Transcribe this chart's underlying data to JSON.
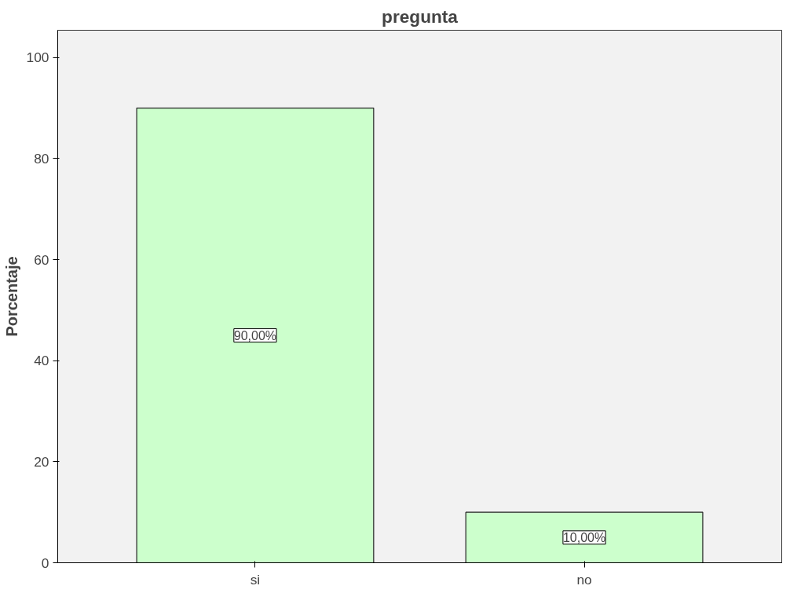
{
  "chart_data": {
    "type": "bar",
    "title": "pregunta",
    "ylabel": "Porcentaje",
    "categories": [
      "si",
      "no"
    ],
    "values": [
      90,
      10
    ],
    "value_labels": [
      "90,00%",
      "10,00%"
    ],
    "color": "#ccffcc",
    "ylim": [
      0,
      105.4
    ],
    "yticks": [
      0,
      20,
      40,
      60,
      80,
      100
    ],
    "grid": false
  }
}
